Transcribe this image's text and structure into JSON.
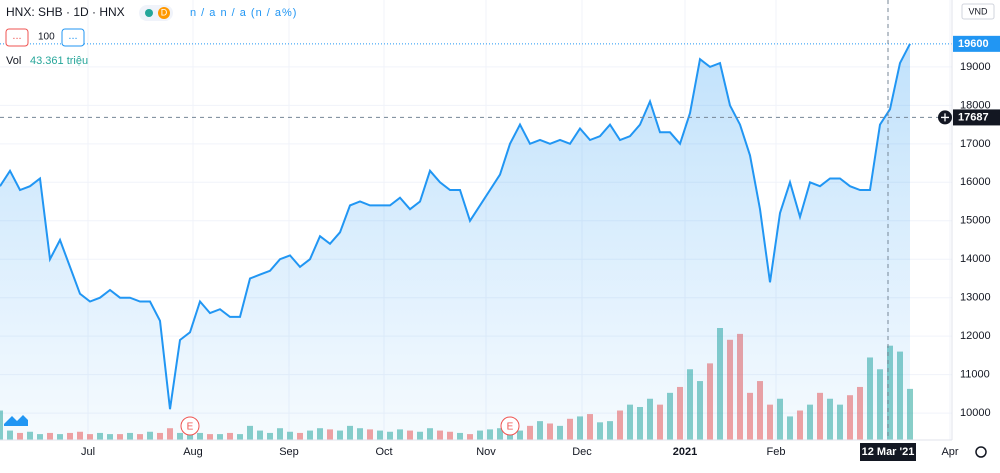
{
  "header": {
    "symbol": "HNX: SHB · 1D · HNX",
    "interval_badge": "D",
    "ohlc": "n / a n / a (n / a%)",
    "study_value": "100",
    "volume_label": "Vol",
    "volume_value": "43.361 triệu",
    "currency": "VND",
    "more": "..."
  },
  "chart_data": {
    "type": "area-line",
    "color": "#2196f3",
    "grid": true,
    "values": [
      15900,
      16300,
      15800,
      15900,
      16100,
      14000,
      14500,
      13800,
      13100,
      12900,
      13000,
      13200,
      13000,
      13000,
      12900,
      12900,
      12400,
      10100,
      11900,
      12100,
      12900,
      12600,
      12700,
      12500,
      12500,
      13500,
      13600,
      13700,
      14000,
      14100,
      13800,
      14000,
      14600,
      14400,
      14700,
      15400,
      15500,
      15400,
      15400,
      15400,
      15600,
      15300,
      15500,
      16300,
      16000,
      15800,
      15800,
      15000,
      15400,
      15800,
      16200,
      17000,
      17500,
      17000,
      17100,
      17000,
      17100,
      17000,
      17400,
      17100,
      17200,
      17500,
      17100,
      17200,
      17500,
      18100,
      17300,
      17300,
      17000,
      17800,
      19200,
      19000,
      19100,
      18000,
      17500,
      16700,
      15300,
      13400,
      15200,
      16000,
      15100,
      16000,
      15900,
      16100,
      16100,
      15900,
      15800,
      15800,
      17500,
      17900,
      19100,
      19600
    ],
    "volume": {
      "up_color": "#26a69a",
      "down_color": "#ef5350",
      "values": [
        25,
        8,
        6,
        7,
        5,
        6,
        5,
        6,
        7,
        5,
        6,
        5,
        5,
        6,
        5,
        7,
        6,
        10,
        6,
        5,
        6,
        5,
        5,
        6,
        5,
        12,
        8,
        6,
        10,
        7,
        6,
        8,
        10,
        9,
        8,
        12,
        10,
        9,
        8,
        7,
        9,
        8,
        7,
        10,
        8,
        7,
        6,
        5,
        8,
        9,
        10,
        9,
        8,
        12,
        16,
        14,
        12,
        18,
        20,
        22,
        15,
        16,
        25,
        30,
        28,
        35,
        30,
        40,
        45,
        60,
        50,
        65,
        95,
        85,
        90,
        40,
        50,
        30,
        35,
        20,
        25,
        30,
        40,
        35,
        30,
        38,
        45,
        70,
        60,
        80,
        75,
        43.361
      ]
    },
    "ylim": [
      9300,
      20740
    ],
    "yticks": [
      10000,
      11000,
      12000,
      13000,
      14000,
      15000,
      16000,
      17000,
      18000,
      19000
    ],
    "xlim": [
      0,
      95.2
    ],
    "xticks": [
      {
        "value": 8.8,
        "label": "Jul"
      },
      {
        "value": 19.3,
        "label": "Aug"
      },
      {
        "value": 28.9,
        "label": "Sep"
      },
      {
        "value": 38.4,
        "label": "Oct"
      },
      {
        "value": 48.6,
        "label": "Nov"
      },
      {
        "value": 58.2,
        "label": "Dec"
      },
      {
        "value": 68.5,
        "label": "2021"
      },
      {
        "value": 77.6,
        "label": "Feb"
      },
      {
        "value": 88.8,
        "label": "12 Mar '21"
      },
      {
        "value": 95.0,
        "label": "Apr"
      }
    ],
    "last_price": 19600,
    "crosshair": {
      "price": 17687,
      "x_tick": 8
    },
    "events": [
      {
        "label": "E",
        "x": 19
      },
      {
        "label": "E",
        "x": 51
      }
    ]
  }
}
